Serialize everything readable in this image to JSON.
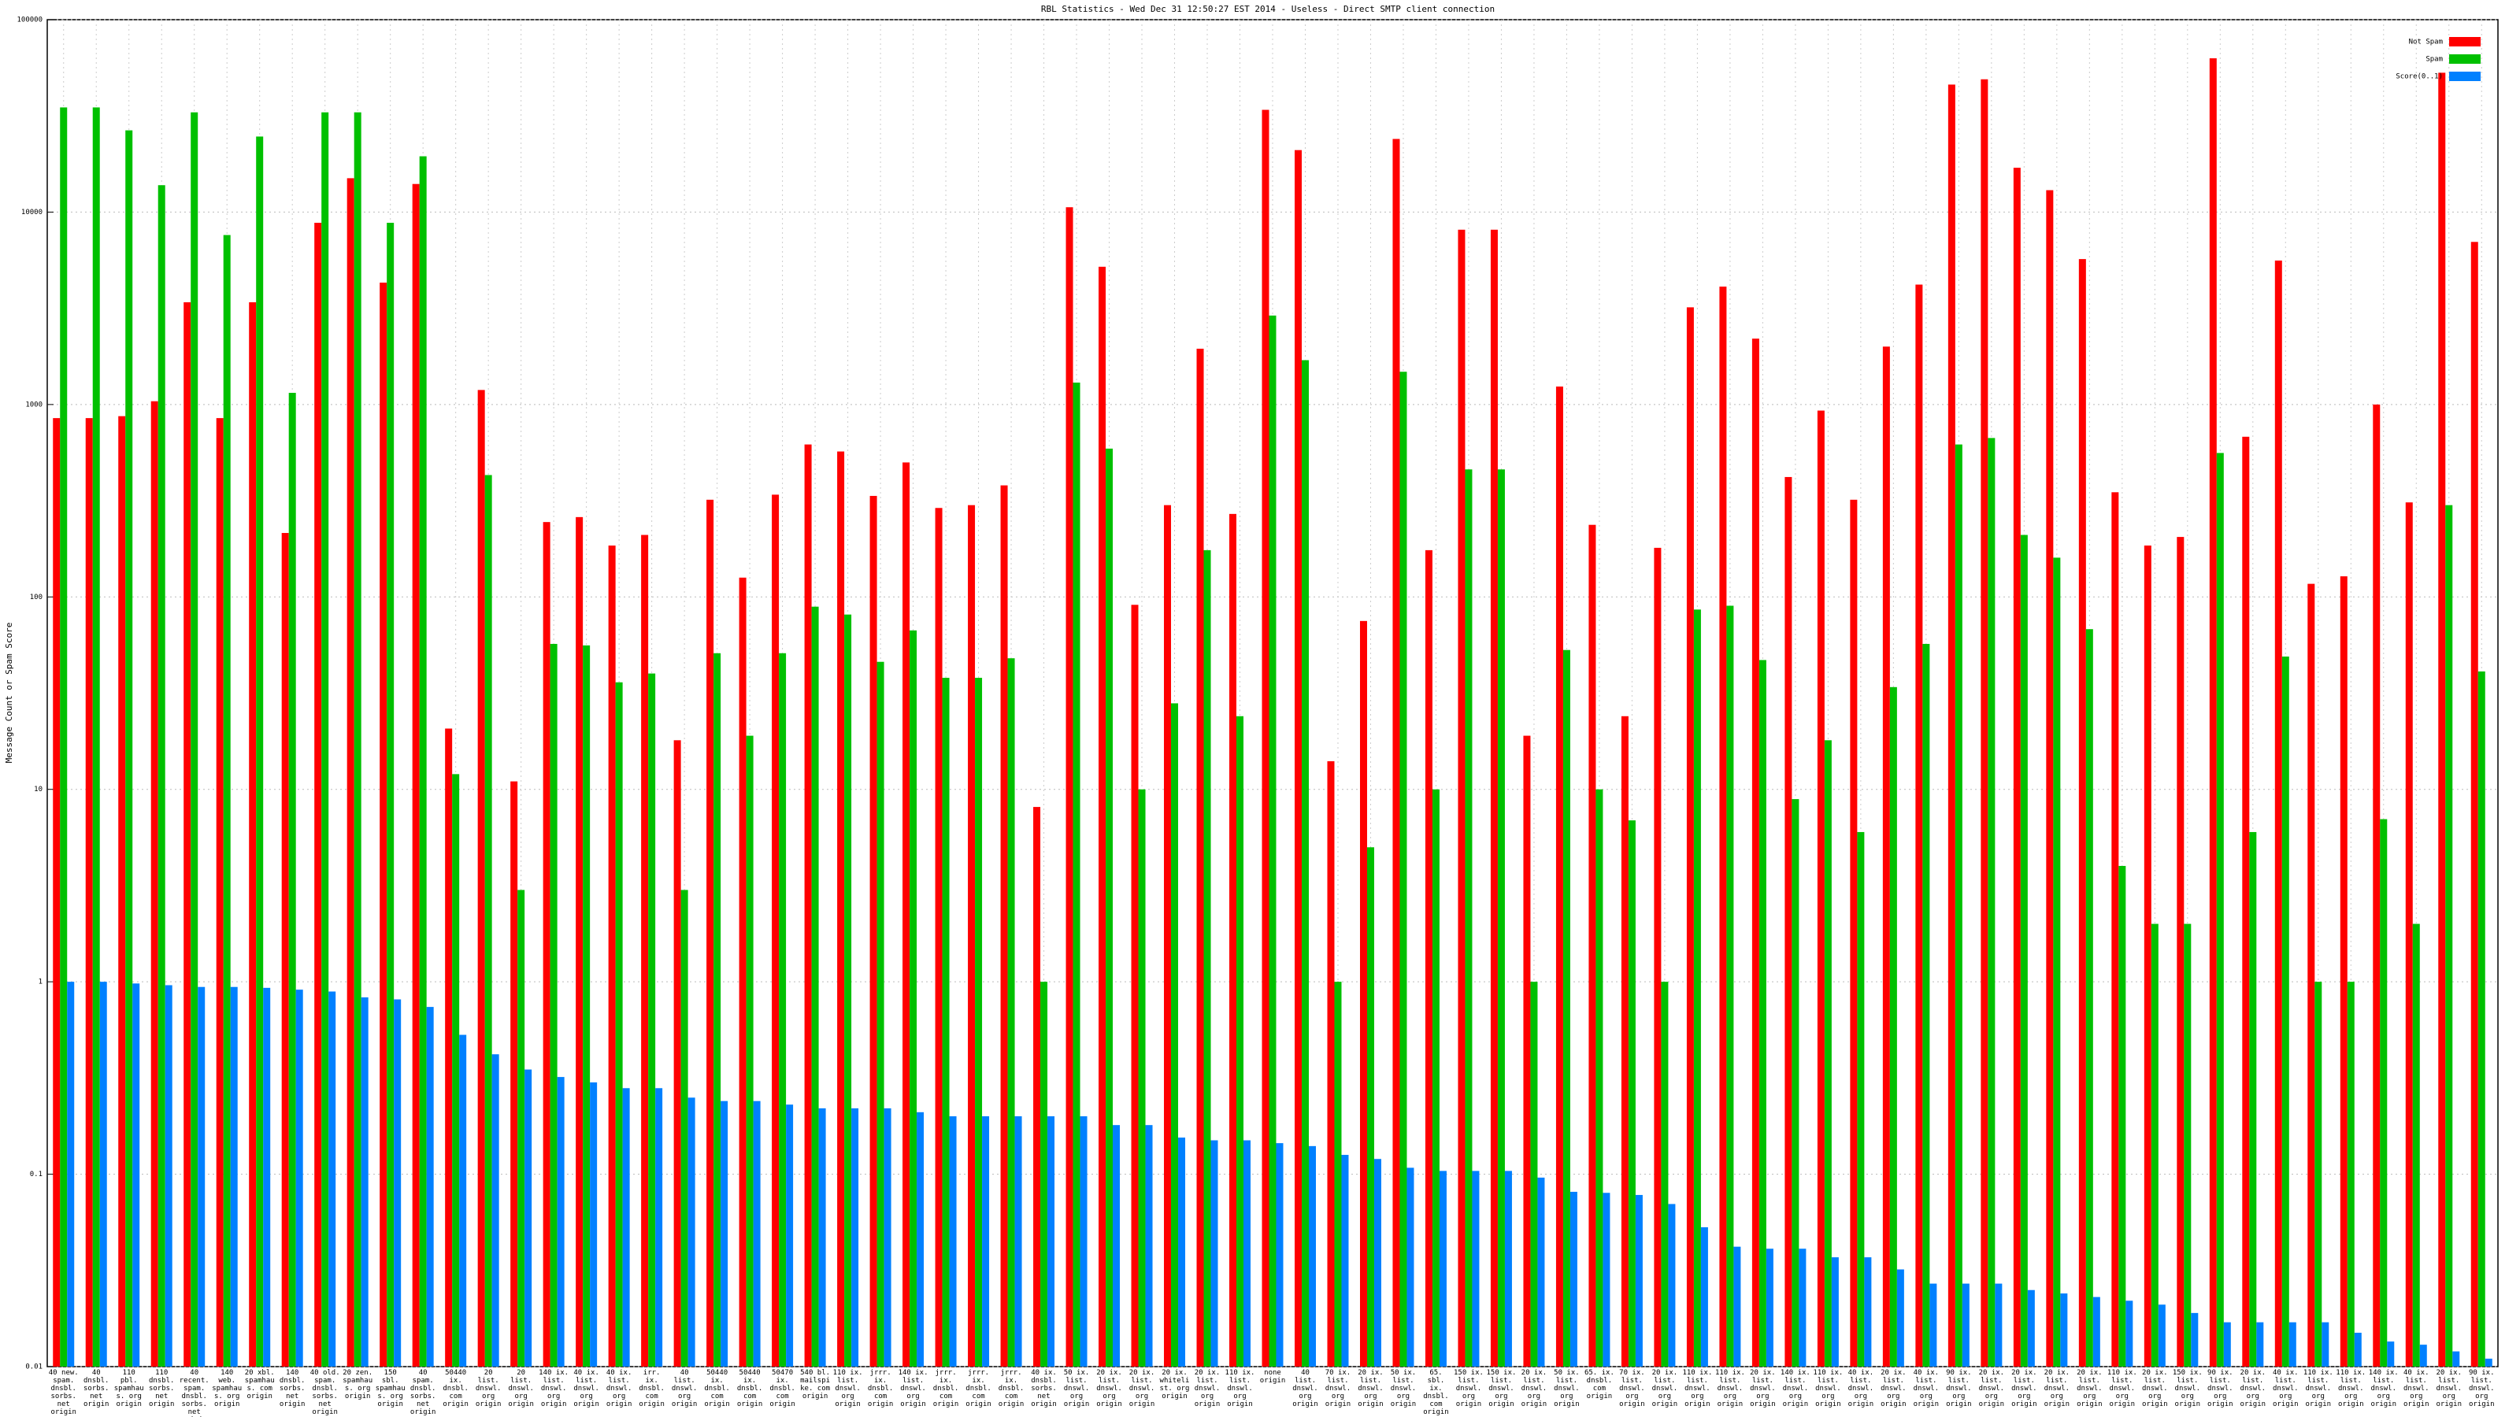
{
  "chart_data": {
    "type": "bar",
    "title": "RBL Statistics - Wed Dec 31 12:50:27 EST 2014 - Useless - Direct SMTP client connection",
    "y_label": "Message Count or Spam Score",
    "log_scale": true,
    "grid": true,
    "legend_position": "upper right",
    "ylim": [
      0.01,
      100000
    ],
    "yticks": [
      0.01,
      0.1,
      1,
      10,
      100,
      1000,
      10000,
      100000
    ],
    "categories": [
      "40 new. spam. dnsbl. sorbs. net origin",
      "40 dnsbl. sorbs. net origin",
      "110 pbl. spamhaus. org origin",
      "110 dnsbl. sorbs. net origin",
      "40 recent. spam. dnsbl. sorbs. net origin",
      "140 web. spamhaus. org origin",
      "20 xbl. spamhaus. com origin",
      "140 dnsbl. sorbs. net origin",
      "40 old. spam. dnsbl. sorbs. net origin",
      "20 zen. spamhaus. org origin",
      "150 sbl. spamhaus. org origin",
      "40 spam. dnsbl. sorbs. net origin",
      "50440 ix. dnsbl. com origin",
      "20 list. dnswl. org origin",
      "20 list. dnswl. org origin",
      "140 ix. list. dnswl. org origin",
      "40 ix. list. dnswl. org origin",
      "40 ix. list. dnswl. org origin",
      "irr. ix. dnsbl. com origin",
      "40 list. dnswl. org origin",
      "50440 ix. dnsbl. com origin",
      "50440 ix. dnsbl. com origin",
      "50470 ix. dnsbl. com origin",
      "540 bl. mailspike. com origin",
      "110 ix. list. dnswl. org origin",
      "jrrr. ix. dnsbl. com origin",
      "140 ix. list. dnswl. org origin",
      "jrrr. ix. dnsbl. com origin",
      "jrrr. ix. dnsbl. com origin",
      "jrrr. ix. dnsbl. com origin",
      "40 ix. dnsbl. sorbs. net origin",
      "50 ix. list. dnswl. org origin",
      "20 ix. list. dnswl. org origin",
      "20 ix. list. dnswl. org origin",
      "20 ix. whitelist. org origin",
      "20 ix. list. dnswl. org origin",
      "110 ix. list. dnswl. org origin",
      "none origin",
      "40 list. dnswl. org origin",
      "70 ix. list. dnswl. org origin",
      "20 ix. list. dnswl. org origin",
      "50 ix. list. dnswl. org origin",
      "65. sbl. ix. dnsbl. com origin",
      "150 ix. list. dnswl. org origin",
      "150 ix. list. dnswl. org origin",
      "20 ix. list. dnswl. org origin",
      "50 ix. list. dnswl. org origin",
      "65. ix. dnsbl. com origin",
      "70 ix. list. dnswl. org origin",
      "20 ix. list. dnswl. org origin",
      "110 ix. list. dnswl. org origin",
      "110 ix. list. dnswl. org origin",
      "20 ix. list. dnswl. org origin",
      "140 ix. list. dnswl. org origin",
      "110 ix. list. dnswl. org origin",
      "40 ix. list. dnswl. org origin",
      "20 ix. list. dnswl. org origin",
      "40 ix. list. dnswl. org origin",
      "90 ix. list. dnswl. org origin",
      "20 ix. list. dnswl. org origin",
      "20 ix. list. dnswl. org origin",
      "20 ix. list. dnswl. org origin",
      "20 ix. list. dnswl. org origin",
      "110 ix. list. dnswl. org origin",
      "20 ix. list. dnswl. org origin",
      "150 ix. list. dnswl. org origin",
      "90 ix. list. dnswl. org origin",
      "20 ix. list. dnswl. org origin",
      "40 ix. list. dnswl. org origin",
      "110 ix. list. dnswl. org origin",
      "110 ix. list. dnswl. org origin",
      "140 ix. list. dnswl. org origin",
      "40 ix. list. dnswl. org origin",
      "20 ix. list. dnswl. org origin",
      "90 ix. list. dnswl. org origin"
    ],
    "series": [
      {
        "name": "Not Spam",
        "color": "#ff0000",
        "values": [
          850,
          850,
          870,
          1040,
          3400,
          850,
          3400,
          215,
          8800,
          15000,
          4300,
          14000,
          20.7,
          1190,
          11,
          245,
          260,
          185,
          210,
          18,
          320,
          126,
          340,
          620,
          570,
          335,
          500,
          290,
          300,
          380,
          8.1,
          10600,
          5200,
          91,
          300,
          1950,
          270,
          34000,
          21000,
          14,
          75,
          24000,
          175,
          8100,
          8100,
          19,
          1240,
          237,
          24,
          180,
          3200,
          4100,
          2200,
          420,
          930,
          320,
          2000,
          4200,
          46000,
          49000,
          17000,
          13000,
          5700,
          350,
          185,
          205,
          63000,
          680,
          5600,
          117,
          128,
          1000,
          310,
          53000,
          7000
        ]
      },
      {
        "name": "Spam",
        "color": "#00c000",
        "values": [
          35000,
          35000,
          26600,
          13800,
          33000,
          7600,
          24700,
          1150,
          33000,
          33000,
          8800,
          19500,
          12,
          430,
          3,
          57,
          56,
          36,
          40,
          3,
          51,
          19,
          51,
          89,
          81,
          46,
          67,
          38,
          38,
          48,
          1,
          1300,
          590,
          10,
          28,
          175,
          24,
          2900,
          1700,
          1,
          5,
          1480,
          10,
          460,
          460,
          1,
          53,
          10,
          6.9,
          1,
          86,
          90,
          47,
          8.9,
          18,
          6,
          34,
          57,
          620,
          670,
          210,
          160,
          68,
          4,
          2,
          2,
          560,
          6,
          49,
          1,
          1,
          7,
          2,
          300,
          41
        ]
      },
      {
        "name": "Score(0..1)",
        "color": "#0080ff",
        "values": [
          1,
          1,
          0.98,
          0.96,
          0.94,
          0.94,
          0.93,
          0.91,
          0.89,
          0.83,
          0.81,
          0.74,
          0.53,
          0.42,
          0.35,
          0.32,
          0.3,
          0.28,
          0.28,
          0.25,
          0.24,
          0.24,
          0.23,
          0.22,
          0.22,
          0.22,
          0.21,
          0.2,
          0.2,
          0.2,
          0.2,
          0.2,
          0.18,
          0.18,
          0.155,
          0.15,
          0.15,
          0.145,
          0.14,
          0.126,
          0.12,
          0.108,
          0.104,
          0.104,
          0.104,
          0.096,
          0.081,
          0.08,
          0.078,
          0.07,
          0.053,
          0.042,
          0.041,
          0.041,
          0.037,
          0.037,
          0.032,
          0.027,
          0.027,
          0.027,
          0.025,
          0.024,
          0.023,
          0.022,
          0.021,
          0.019,
          0.017,
          0.017,
          0.017,
          0.017,
          0.015,
          0.0135,
          0.013,
          0.012,
          0.011
        ]
      }
    ]
  }
}
